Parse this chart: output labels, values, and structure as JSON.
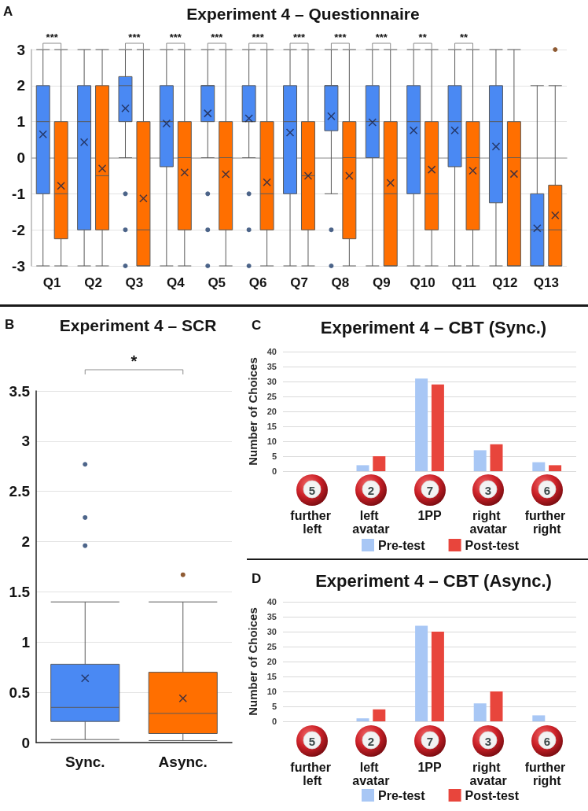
{
  "chart_data": [
    {
      "type": "box",
      "title": "Experiment 4 – Questionnaire",
      "categories": [
        "Q1",
        "Q2",
        "Q3",
        "Q4",
        "Q5",
        "Q6",
        "Q7",
        "Q8",
        "Q9",
        "Q10",
        "Q11",
        "Q12",
        "Q13"
      ],
      "series": [
        {
          "color": "#4a89f3",
          "boxes": [
            {
              "low": -3,
              "q1": -1,
              "median": 1,
              "q3": 2,
              "high": 3,
              "mean": 0.65
            },
            {
              "low": -3,
              "q1": -2,
              "median": 1,
              "q3": 2,
              "high": 3,
              "mean": 0.43
            },
            {
              "low": 0,
              "q1": 1,
              "median": 2,
              "q3": 2.25,
              "high": 3,
              "mean": 1.37,
              "outliers": [
                -1,
                -2,
                -3
              ]
            },
            {
              "low": -3,
              "q1": -0.25,
              "median": 1,
              "q3": 2,
              "high": 3,
              "mean": 0.95
            },
            {
              "low": 0,
              "q1": 1,
              "median": 2,
              "q3": 2,
              "high": 3,
              "mean": 1.23,
              "outliers": [
                -1,
                -2,
                -3
              ]
            },
            {
              "low": 0,
              "q1": 1,
              "median": 1,
              "q3": 2,
              "high": 3,
              "mean": 1.09,
              "outliers": [
                -1,
                -2,
                -3
              ]
            },
            {
              "low": -3,
              "q1": -1,
              "median": 1,
              "q3": 2,
              "high": 3,
              "mean": 0.7
            },
            {
              "low": -1,
              "q1": 0.75,
              "median": 2,
              "q3": 2,
              "high": 3,
              "mean": 1.15,
              "outliers": [
                -2,
                -3
              ]
            },
            {
              "low": -3,
              "q1": 0,
              "median": 1,
              "q3": 2,
              "high": 3,
              "mean": 0.98
            },
            {
              "low": -3,
              "q1": -1,
              "median": 1,
              "q3": 2,
              "high": 3,
              "mean": 0.76
            },
            {
              "low": -3,
              "q1": -0.25,
              "median": 1,
              "q3": 2,
              "high": 3,
              "mean": 0.76
            },
            {
              "low": -3,
              "q1": -1.25,
              "median": 1,
              "q3": 2,
              "high": 3,
              "mean": 0.31
            },
            {
              "low": -3,
              "q1": -3,
              "median": -2,
              "q3": -1,
              "high": 2,
              "mean": -1.96
            }
          ]
        },
        {
          "color": "#ff6f00",
          "boxes": [
            {
              "low": -3,
              "q1": -2.25,
              "median": -1,
              "q3": 1,
              "high": 3,
              "mean": -0.78
            },
            {
              "low": -3,
              "q1": -2,
              "median": -0.5,
              "q3": 2,
              "high": 3,
              "mean": -0.3
            },
            {
              "low": -3,
              "q1": -3,
              "median": -2,
              "q3": 1,
              "high": 3,
              "mean": -1.13
            },
            {
              "low": -3,
              "q1": -2,
              "median": 0,
              "q3": 1,
              "high": 3,
              "mean": -0.41
            },
            {
              "low": -3,
              "q1": -2,
              "median": 0,
              "q3": 1,
              "high": 3,
              "mean": -0.46
            },
            {
              "low": -3,
              "q1": -2,
              "median": -1,
              "q3": 1,
              "high": 3,
              "mean": -0.68
            },
            {
              "low": -3,
              "q1": -2,
              "median": -0.5,
              "q3": 1,
              "high": 3,
              "mean": -0.5
            },
            {
              "low": -3,
              "q1": -2.25,
              "median": 0,
              "q3": 1,
              "high": 3,
              "mean": -0.5
            },
            {
              "low": -3,
              "q1": -3,
              "median": -1,
              "q3": 1,
              "high": 3,
              "mean": -0.7
            },
            {
              "low": -3,
              "q1": -2,
              "median": -1,
              "q3": 1,
              "high": 3,
              "mean": -0.33
            },
            {
              "low": -3,
              "q1": -2,
              "median": 0,
              "q3": 1,
              "high": 3,
              "mean": -0.36
            },
            {
              "low": -3,
              "q1": -3,
              "median": 0,
              "q3": 1,
              "high": 3,
              "mean": -0.45
            },
            {
              "low": -3,
              "q1": -3,
              "median": -2,
              "q3": -0.76,
              "high": 2,
              "mean": -1.6,
              "outliers": [
                3
              ]
            }
          ]
        }
      ],
      "ylim": [
        -3,
        3
      ],
      "yticks": [
        -3,
        -2,
        -1,
        0,
        1,
        2,
        3
      ],
      "grid": "y",
      "annotations": [
        "A",
        "***",
        "***",
        "***",
        "***",
        "***",
        "***",
        "***",
        "***",
        "**",
        "**"
      ]
    },
    {
      "type": "box",
      "title": "Experiment 4 – SCR",
      "categories": [
        "Sync.",
        "Async."
      ],
      "colors": [
        "#4a89f3",
        "#ff6f00"
      ],
      "boxes": [
        {
          "low": 0.03,
          "q1": 0.21,
          "median": 0.35,
          "q3": 0.78,
          "high": 1.4,
          "mean": 0.64,
          "outliers": [
            1.96,
            2.24,
            2.77
          ]
        },
        {
          "low": 0.02,
          "q1": 0.09,
          "median": 0.29,
          "q3": 0.7,
          "high": 1.4,
          "mean": 0.44,
          "outliers": [
            1.67
          ]
        }
      ],
      "ylim": [
        0,
        3.5
      ],
      "yticks": [
        0,
        0.5,
        1,
        1.5,
        2,
        2.5,
        3,
        3.5
      ],
      "grid": "y",
      "annotations": [
        "B",
        "*"
      ]
    },
    {
      "type": "bar",
      "title": "Experiment 4 – CBT (Sync.)",
      "ylabel": "Number of Choices",
      "categories": [
        "further left",
        "left avatar",
        "1PP",
        "right avatar",
        "further right"
      ],
      "series": [
        {
          "name": "Pre-test",
          "color": "#a8c7f5",
          "values": [
            0,
            2,
            31,
            7,
            3
          ]
        },
        {
          "name": "Post-test",
          "color": "#e8453c",
          "values": [
            0,
            5,
            29,
            9,
            2
          ]
        }
      ],
      "ylim": [
        0,
        40
      ],
      "yticks": [
        0,
        5,
        10,
        15,
        20,
        25,
        30,
        35,
        40
      ],
      "grid": "y",
      "legend": "bottom",
      "annotations": [
        "C",
        "5",
        "2",
        "7",
        "3",
        "6"
      ]
    },
    {
      "type": "bar",
      "title": "Experiment 4 – CBT (Async.)",
      "ylabel": "Number of Choices",
      "categories": [
        "further left",
        "left avatar",
        "1PP",
        "right avatar",
        "further right"
      ],
      "series": [
        {
          "name": "Pre-test",
          "color": "#a8c7f5",
          "values": [
            0,
            1,
            32,
            6,
            2
          ]
        },
        {
          "name": "Post-test",
          "color": "#e8453c",
          "values": [
            0,
            4,
            30,
            10,
            0
          ]
        }
      ],
      "ylim": [
        0,
        40
      ],
      "yticks": [
        0,
        5,
        10,
        15,
        20,
        25,
        30,
        35,
        40
      ],
      "grid": "y",
      "legend": "bottom",
      "annotations": [
        "D",
        "5",
        "2",
        "7",
        "3",
        "6"
      ]
    }
  ]
}
